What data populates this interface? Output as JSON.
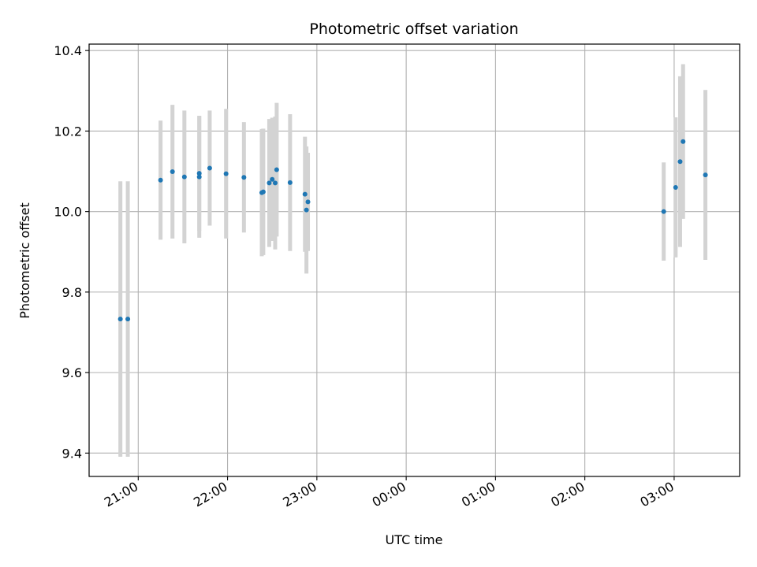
{
  "chart_data": {
    "type": "scatter",
    "title": "Photometric offset variation",
    "xlabel": "UTC time",
    "ylabel": "Photometric offset",
    "x_tick_labels": [
      "21:00",
      "22:00",
      "23:00",
      "00:00",
      "01:00",
      "02:00",
      "03:00"
    ],
    "x_tick_times": [
      "20:59",
      "21:59",
      "22:59",
      "23:59",
      "00:59",
      "01:59",
      "02:59"
    ],
    "y_ticks": [
      9.4,
      9.6,
      9.8,
      10.0,
      10.2,
      10.4
    ],
    "y_tick_labels": [
      "9.4",
      "9.6",
      "9.8",
      "10.0",
      "10.2",
      "10.4"
    ],
    "xlim": [
      "20:26",
      "03:43"
    ],
    "ylim": [
      9.342,
      10.416
    ],
    "grid": true,
    "colors": {
      "marker": "#1f77b4",
      "errorbar": "#d3d3d3",
      "grid": "#b0b0b0"
    },
    "points": [
      {
        "t": "20:47",
        "y": 9.733,
        "err": 0.342
      },
      {
        "t": "20:52",
        "y": 9.733,
        "err": 0.342
      },
      {
        "t": "21:14",
        "y": 10.078,
        "err": 0.148
      },
      {
        "t": "21:22",
        "y": 10.099,
        "err": 0.166
      },
      {
        "t": "21:30",
        "y": 10.086,
        "err": 0.165
      },
      {
        "t": "21:40",
        "y": 10.095,
        "err": 0.143
      },
      {
        "t": "21:40",
        "y": 10.086,
        "err": 0.151
      },
      {
        "t": "21:47",
        "y": 10.108,
        "err": 0.143
      },
      {
        "t": "21:58",
        "y": 10.094,
        "err": 0.161
      },
      {
        "t": "22:10",
        "y": 10.085,
        "err": 0.137
      },
      {
        "t": "22:22",
        "y": 10.047,
        "err": 0.158
      },
      {
        "t": "22:23",
        "y": 10.049,
        "err": 0.157
      },
      {
        "t": "22:27",
        "y": 10.071,
        "err": 0.159
      },
      {
        "t": "22:29",
        "y": 10.08,
        "err": 0.153
      },
      {
        "t": "22:31",
        "y": 10.071,
        "err": 0.165
      },
      {
        "t": "22:32",
        "y": 10.104,
        "err": 0.166
      },
      {
        "t": "22:41",
        "y": 10.072,
        "err": 0.17
      },
      {
        "t": "22:51",
        "y": 10.043,
        "err": 0.143
      },
      {
        "t": "22:52",
        "y": 10.004,
        "err": 0.158
      },
      {
        "t": "22:53",
        "y": 10.024,
        "err": 0.122
      },
      {
        "t": "02:52",
        "y": 10.0,
        "err": 0.122
      },
      {
        "t": "03:00",
        "y": 10.06,
        "err": 0.174
      },
      {
        "t": "03:03",
        "y": 10.124,
        "err": 0.212
      },
      {
        "t": "03:05",
        "y": 10.174,
        "err": 0.192
      },
      {
        "t": "03:20",
        "y": 10.091,
        "err": 0.211
      }
    ]
  }
}
